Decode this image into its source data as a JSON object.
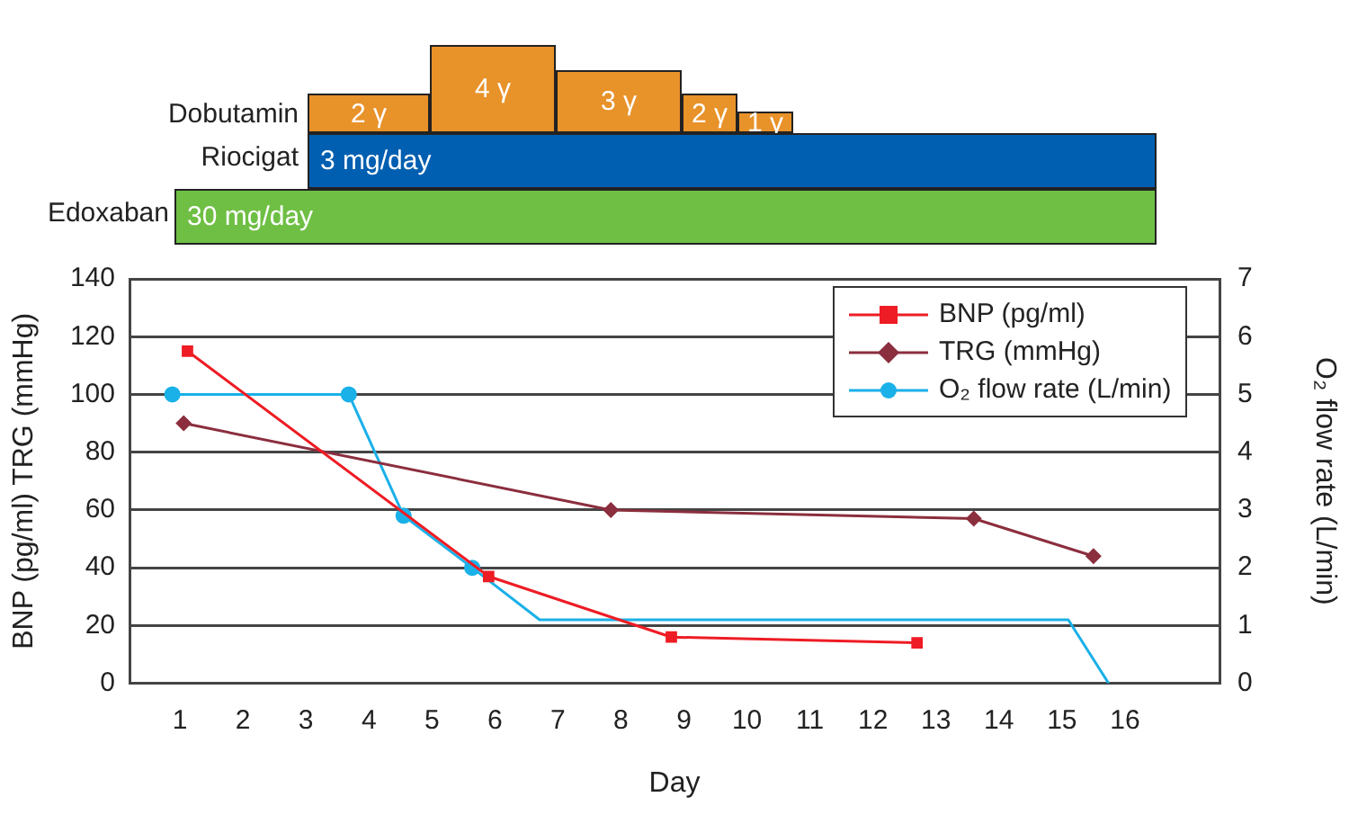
{
  "chart_data": [
    {
      "type": "other",
      "categories": [
        "Dobutamin",
        "Riocigat",
        "Edoxaban"
      ],
      "annotations": [
        "2 γ",
        "4 γ",
        "3 γ",
        "2 γ",
        "1 γ",
        "3 mg/day",
        "30 mg/day"
      ]
    },
    {
      "type": "line",
      "xlabel": "Day",
      "ylabel": "BNP (pg/ml) TRG (mmHg)",
      "y2label": "O₂ flow rate (L/min)",
      "xlim": [
        0.2,
        17.5
      ],
      "xticks": [
        1,
        2,
        3,
        4,
        5,
        6,
        7,
        8,
        9,
        10,
        11,
        12,
        13,
        14,
        15,
        16
      ],
      "ylim": [
        0,
        140
      ],
      "yticks": [
        0,
        20,
        40,
        60,
        80,
        100,
        120,
        140
      ],
      "y2lim": [
        0,
        7
      ],
      "y2ticks": [
        0,
        1,
        2,
        3,
        4,
        5,
        6,
        7
      ],
      "grid": "y",
      "legend": "top right",
      "series": [
        {
          "name": "BNP (pg/ml)",
          "color": "#ee1c24",
          "marker": "square",
          "x": [
            1.12,
            5.9,
            8.8,
            12.7
          ],
          "values": [
            115,
            37,
            16,
            14
          ]
        },
        {
          "name": "TRG (mmHg)",
          "color": "#8b2e3e",
          "marker": "diamond",
          "x": [
            1.06,
            7.84,
            13.6,
            15.5
          ],
          "values": [
            90,
            60,
            57,
            44
          ]
        },
        {
          "name": "O₂ flow rate (L/min)",
          "color": "#1ab0e8",
          "axis": "y2",
          "marker": [
            "circle",
            "circle",
            "circle",
            "circle",
            "none",
            "none",
            "none"
          ],
          "x": [
            0.88,
            3.68,
            4.55,
            5.64,
            6.71,
            15.1,
            15.74
          ],
          "values": [
            5,
            5,
            2.9,
            2,
            1.1,
            1.1,
            0
          ]
        }
      ]
    }
  ]
}
